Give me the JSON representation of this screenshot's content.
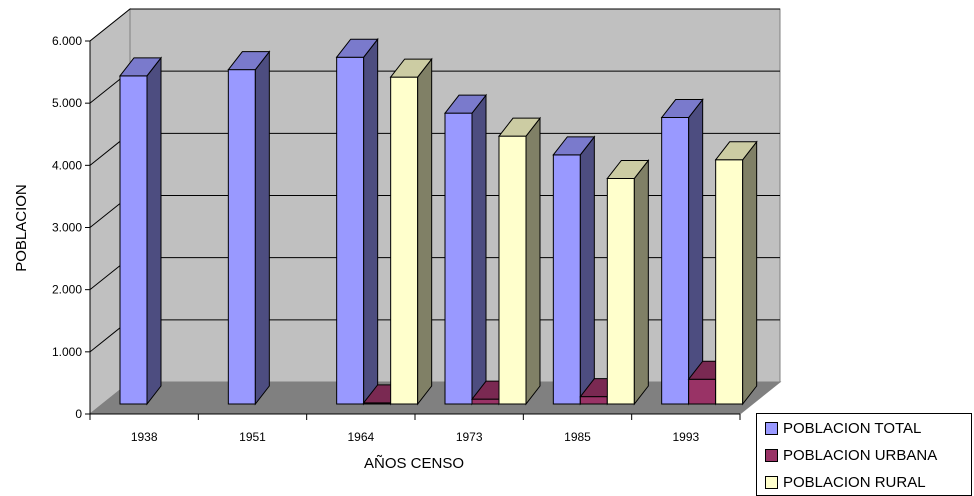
{
  "chart_data": {
    "type": "bar",
    "title": "",
    "xlabel": "AÑOS CENSO",
    "ylabel": "POBLACION",
    "ylim": [
      0,
      6000
    ],
    "y_ticks": [
      "0",
      "1.000",
      "2.000",
      "3.000",
      "4.000",
      "5.000",
      "6.000"
    ],
    "categories": [
      "1938",
      "1951",
      "1964",
      "1973",
      "1985",
      "1993"
    ],
    "series": [
      {
        "name": "POBLACION TOTAL",
        "values": [
          5600,
          5700,
          5900,
          5000,
          4330,
          4930
        ],
        "color": "#9999ff"
      },
      {
        "name": "POBLACION URBANA",
        "values": [
          null,
          null,
          340,
          400,
          440,
          720
        ],
        "color": "#993366"
      },
      {
        "name": "POBLACION RURAL",
        "values": [
          null,
          null,
          5580,
          4630,
          3950,
          4250
        ],
        "color": "#ffffcc"
      }
    ],
    "grid": true,
    "legend_position": "bottom-right",
    "style": "3d-clustered-column"
  }
}
